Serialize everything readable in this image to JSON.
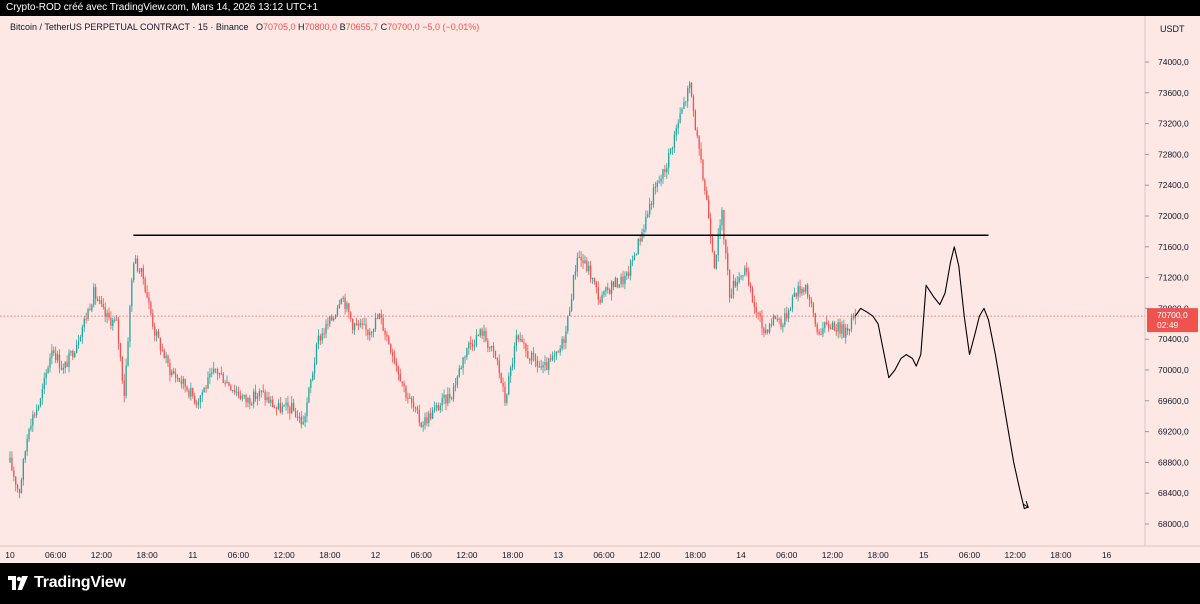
{
  "header": {
    "text": "Crypto-ROD créé avec TradingView.com, Mars 14, 2026 13:12 UTC+1"
  },
  "legend": {
    "symbol": "Bitcoin / TetherUS PERPETUAL CONTRACT · 15 · Binance",
    "o_label": "O",
    "o_value": "70705,0",
    "h_label": "H",
    "h_value": "70800,0",
    "b_label": "B",
    "b_value": "70655,7",
    "c_label": "C",
    "c_value": "70700,0",
    "change": "−5,0 (−0,01%)"
  },
  "price_axis": {
    "currency": "USDT",
    "last_price": "70700,0",
    "countdown": "02:49"
  },
  "footer": {
    "brand": "TradingView"
  },
  "colors": {
    "background": "#fde8e6",
    "up": "#26a69a",
    "down": "#ef5350",
    "line": "#000000"
  },
  "chart_data": {
    "type": "candlestick",
    "title": "Bitcoin / TetherUS PERPETUAL CONTRACT · 15 · Binance",
    "xlabel": "",
    "ylabel": "",
    "ylim": [
      67850,
      74250
    ],
    "y_ticks": [
      "68000,0",
      "68400,0",
      "68800,0",
      "69200,0",
      "69600,0",
      "70000,0",
      "70400,0",
      "70800,0",
      "71200,0",
      "71600,0",
      "72000,0",
      "72400,0",
      "72800,0",
      "73200,0",
      "73600,0",
      "74000,0"
    ],
    "y_tick_values": [
      68000,
      68400,
      68800,
      69200,
      69600,
      70000,
      70400,
      70800,
      71200,
      71600,
      72000,
      72400,
      72800,
      73200,
      73600,
      74000
    ],
    "x_ticks": [
      "10",
      "06:00",
      "12:00",
      "18:00",
      "11",
      "06:00",
      "12:00",
      "18:00",
      "12",
      "06:00",
      "12:00",
      "18:00",
      "13",
      "06:00",
      "12:00",
      "18:00",
      "14",
      "06:00",
      "12:00",
      "18:00",
      "15",
      "06:00",
      "12:00",
      "18:00",
      "16"
    ],
    "x_tick_hours": [
      0,
      6,
      12,
      18,
      24,
      30,
      36,
      42,
      48,
      54,
      60,
      66,
      72,
      78,
      84,
      90,
      96,
      102,
      108,
      114,
      120,
      126,
      132,
      138,
      144
    ],
    "bar_interval_hours": 0.25,
    "last_price": 70700,
    "resistance_line": {
      "value": 71750,
      "from_hour": 16.2,
      "to_hour": 128.5
    },
    "path_points": [
      {
        "x": 70722,
        "y": 0
      },
      {
        "x": 68200,
        "y": 0
      }
    ],
    "anchors": [
      {
        "h": 0.0,
        "p": 68800
      },
      {
        "h": 1.2,
        "p": 68400
      },
      {
        "h": 2.5,
        "p": 69300
      },
      {
        "h": 4.0,
        "p": 69600
      },
      {
        "h": 5.5,
        "p": 70300
      },
      {
        "h": 7.0,
        "p": 70000
      },
      {
        "h": 8.5,
        "p": 70300
      },
      {
        "h": 10.0,
        "p": 70700
      },
      {
        "h": 11.0,
        "p": 71000
      },
      {
        "h": 12.5,
        "p": 70700
      },
      {
        "h": 14.0,
        "p": 70600
      },
      {
        "h": 15.0,
        "p": 69700
      },
      {
        "h": 16.2,
        "p": 71450
      },
      {
        "h": 17.5,
        "p": 71200
      },
      {
        "h": 19.0,
        "p": 70500
      },
      {
        "h": 21.0,
        "p": 70000
      },
      {
        "h": 23.0,
        "p": 69800
      },
      {
        "h": 24.5,
        "p": 69600
      },
      {
        "h": 27.0,
        "p": 70000
      },
      {
        "h": 29.0,
        "p": 69800
      },
      {
        "h": 31.0,
        "p": 69600
      },
      {
        "h": 33.0,
        "p": 69700
      },
      {
        "h": 35.0,
        "p": 69500
      },
      {
        "h": 37.0,
        "p": 69500
      },
      {
        "h": 38.5,
        "p": 69300
      },
      {
        "h": 40.5,
        "p": 70400
      },
      {
        "h": 42.5,
        "p": 70700
      },
      {
        "h": 43.5,
        "p": 71000
      },
      {
        "h": 45.0,
        "p": 70600
      },
      {
        "h": 47.0,
        "p": 70500
      },
      {
        "h": 48.5,
        "p": 70700
      },
      {
        "h": 50.0,
        "p": 70300
      },
      {
        "h": 52.0,
        "p": 69700
      },
      {
        "h": 54.0,
        "p": 69300
      },
      {
        "h": 56.0,
        "p": 69500
      },
      {
        "h": 58.0,
        "p": 69700
      },
      {
        "h": 60.0,
        "p": 70300
      },
      {
        "h": 62.0,
        "p": 70500
      },
      {
        "h": 64.0,
        "p": 70100
      },
      {
        "h": 65.0,
        "p": 69600
      },
      {
        "h": 66.5,
        "p": 70400
      },
      {
        "h": 68.0,
        "p": 70200
      },
      {
        "h": 70.0,
        "p": 70000
      },
      {
        "h": 72.0,
        "p": 70200
      },
      {
        "h": 73.0,
        "p": 70500
      },
      {
        "h": 74.5,
        "p": 71500
      },
      {
        "h": 76.0,
        "p": 71300
      },
      {
        "h": 77.5,
        "p": 70900
      },
      {
        "h": 79.0,
        "p": 71100
      },
      {
        "h": 81.0,
        "p": 71200
      },
      {
        "h": 83.0,
        "p": 71800
      },
      {
        "h": 84.5,
        "p": 72300
      },
      {
        "h": 86.0,
        "p": 72600
      },
      {
        "h": 88.0,
        "p": 73300
      },
      {
        "h": 89.3,
        "p": 73700
      },
      {
        "h": 90.5,
        "p": 72800
      },
      {
        "h": 91.5,
        "p": 72200
      },
      {
        "h": 92.5,
        "p": 71400
      },
      {
        "h": 93.5,
        "p": 72000
      },
      {
        "h": 94.5,
        "p": 71000
      },
      {
        "h": 95.5,
        "p": 71200
      },
      {
        "h": 96.5,
        "p": 71300
      },
      {
        "h": 97.5,
        "p": 70900
      },
      {
        "h": 99.0,
        "p": 70500
      },
      {
        "h": 100.5,
        "p": 70700
      },
      {
        "h": 101.5,
        "p": 70600
      },
      {
        "h": 103.0,
        "p": 71000
      },
      {
        "h": 104.5,
        "p": 71100
      },
      {
        "h": 106.0,
        "p": 70500
      },
      {
        "h": 108.0,
        "p": 70600
      },
      {
        "h": 109.5,
        "p": 70500
      },
      {
        "h": 111.0,
        "p": 70700
      }
    ],
    "projection": [
      {
        "h": 111.0,
        "p": 70700
      },
      {
        "h": 111.7,
        "p": 70800
      },
      {
        "h": 112.6,
        "p": 70750
      },
      {
        "h": 113.3,
        "p": 70700
      },
      {
        "h": 114.0,
        "p": 70600
      },
      {
        "h": 114.8,
        "p": 70200
      },
      {
        "h": 115.4,
        "p": 69900
      },
      {
        "h": 116.2,
        "p": 70000
      },
      {
        "h": 117.0,
        "p": 70150
      },
      {
        "h": 117.7,
        "p": 70200
      },
      {
        "h": 118.5,
        "p": 70150
      },
      {
        "h": 119.0,
        "p": 70050
      },
      {
        "h": 119.6,
        "p": 70200
      },
      {
        "h": 120.3,
        "p": 71100
      },
      {
        "h": 121.3,
        "p": 70950
      },
      {
        "h": 122.1,
        "p": 70850
      },
      {
        "h": 122.8,
        "p": 71000
      },
      {
        "h": 123.5,
        "p": 71400
      },
      {
        "h": 124.0,
        "p": 71600
      },
      {
        "h": 124.6,
        "p": 71350
      },
      {
        "h": 125.3,
        "p": 70700
      },
      {
        "h": 126.0,
        "p": 70200
      },
      {
        "h": 126.8,
        "p": 70500
      },
      {
        "h": 127.3,
        "p": 70700
      },
      {
        "h": 127.9,
        "p": 70800
      },
      {
        "h": 128.5,
        "p": 70650
      },
      {
        "h": 129.4,
        "p": 70200
      },
      {
        "h": 130.6,
        "p": 69500
      },
      {
        "h": 131.8,
        "p": 68800
      },
      {
        "h": 132.6,
        "p": 68450
      },
      {
        "h": 133.2,
        "p": 68200
      },
      {
        "h": 133.7,
        "p": 68220
      }
    ]
  }
}
